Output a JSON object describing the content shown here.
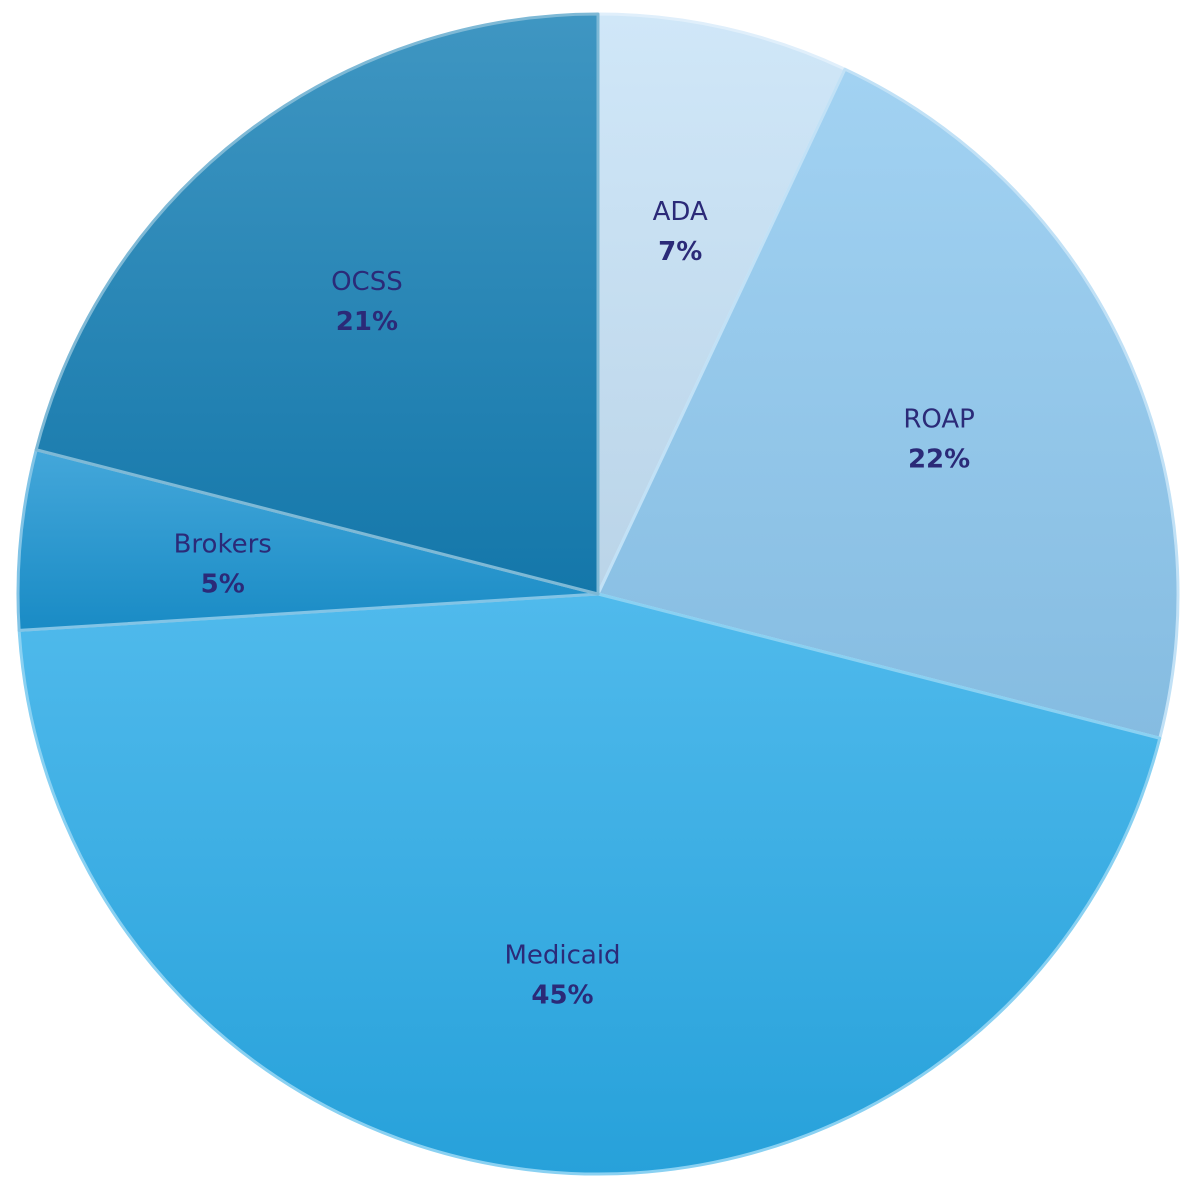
{
  "chart_data": {
    "type": "pie",
    "start_angle_deg": 0,
    "direction": "clockwise",
    "slices": [
      {
        "label": "ADA",
        "value": 7,
        "value_label": "7%",
        "color": "#c6e2f7"
      },
      {
        "label": "ROAP",
        "value": 22,
        "value_label": "22%",
        "color": "#8ec8ef"
      },
      {
        "label": "Medicaid",
        "value": 45,
        "value_label": "45%",
        "color": "#2aabe8"
      },
      {
        "label": "Brokers",
        "value": 5,
        "value_label": "5%",
        "color": "#1b94d2"
      },
      {
        "label": "OCSS",
        "value": 21,
        "value_label": "21%",
        "color": "#157fb5"
      }
    ]
  }
}
